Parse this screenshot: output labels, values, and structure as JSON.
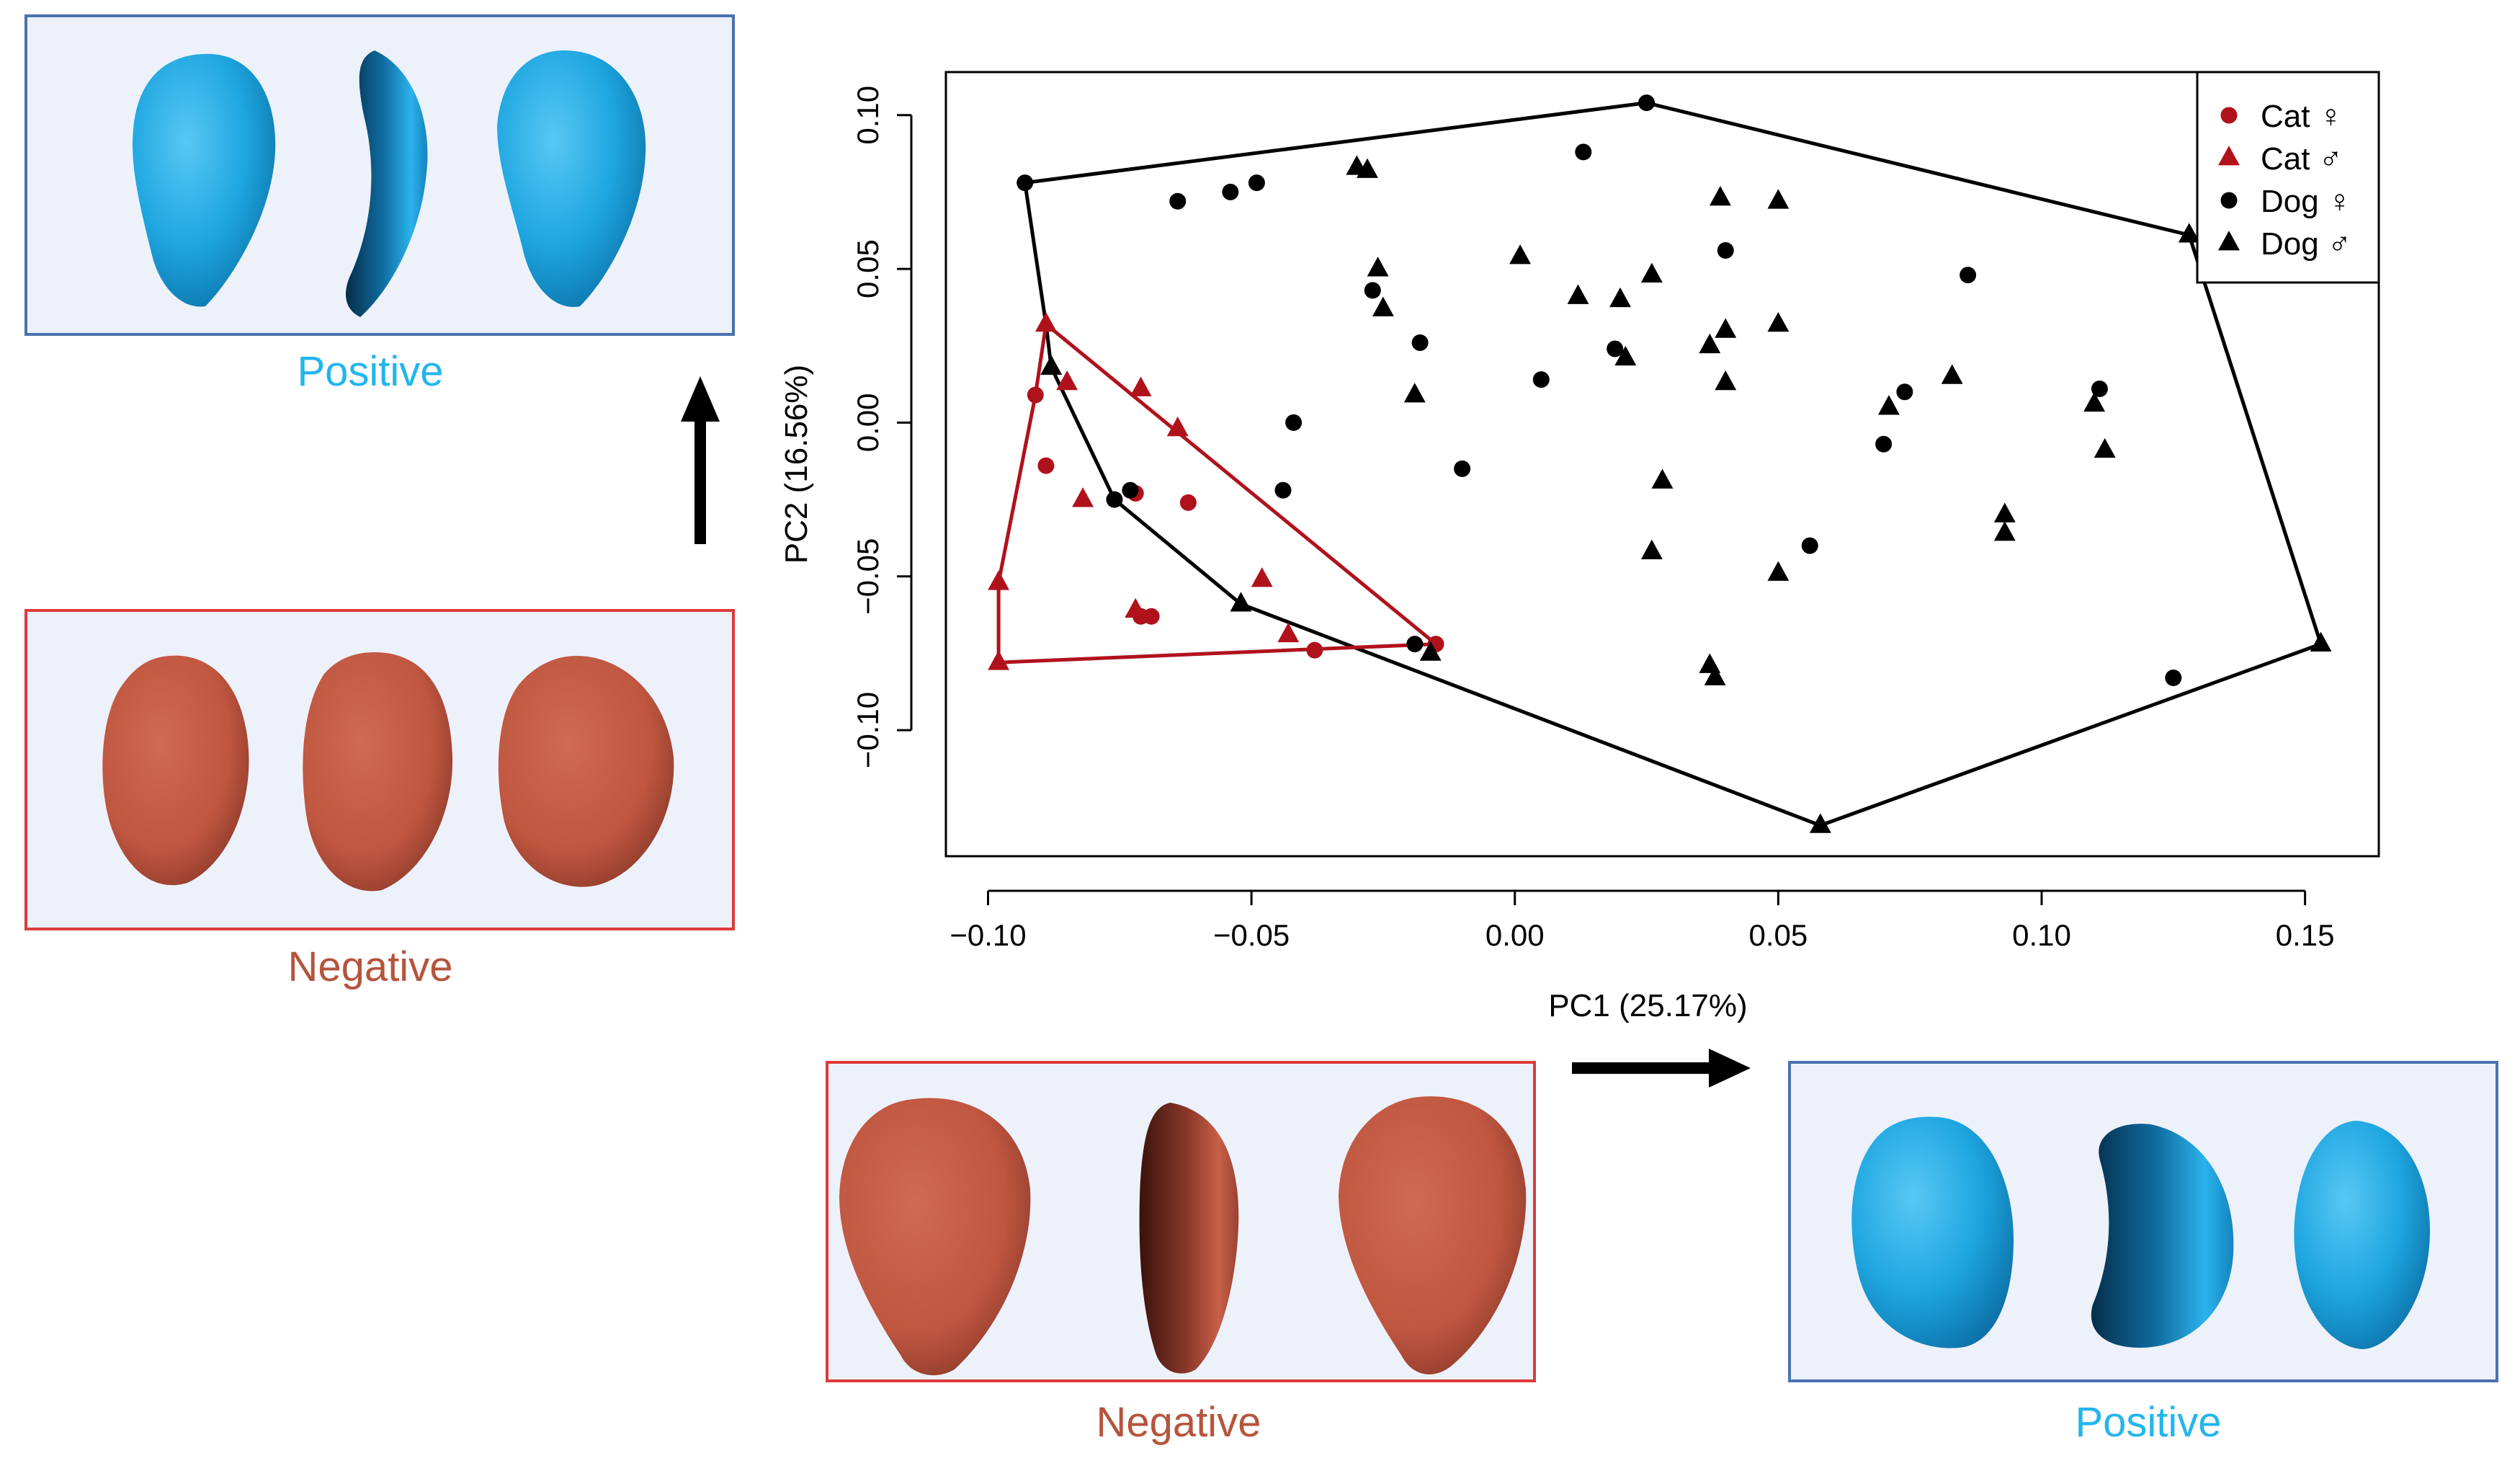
{
  "captions": {
    "top_left": "Positive",
    "mid_left": "Negative",
    "bottom_mid": "Negative",
    "bottom_right": "Positive"
  },
  "colors": {
    "cat": "#b0121c",
    "dog": "#000000",
    "positive_text": "#22b5ee",
    "negative_text": "#b6543c",
    "blue_shape": "#1ca3dc",
    "red_shape": "#c05a45"
  },
  "icons": {
    "pc2_arrow": "arrow-up-icon",
    "pc1_arrow": "arrow-right-icon",
    "female": "female-symbol",
    "male": "male-symbol"
  },
  "chart_data": {
    "type": "scatter",
    "title": "",
    "xlabel": "PC1 (25.17%)",
    "ylabel": "PC2 (16.56%)",
    "xlim": [
      -0.108,
      0.164
    ],
    "ylim": [
      -0.141,
      0.114
    ],
    "xticks": [
      -0.1,
      -0.05,
      0.0,
      0.05,
      0.1,
      0.15
    ],
    "xtick_labels": [
      "−0.10",
      "−0.05",
      "0.00",
      "0.05",
      "0.10",
      "0.15"
    ],
    "yticks": [
      -0.1,
      -0.05,
      0.0,
      0.05,
      0.1
    ],
    "ytick_labels": [
      "−0.10",
      "−0.05",
      "0.00",
      "0.05",
      "0.10"
    ],
    "grid": false,
    "legend_position": "top-right",
    "legend": [
      {
        "label": "Cat ♀",
        "species": "Cat",
        "symbol": "♀",
        "marker": "circle",
        "color": "#b0121c"
      },
      {
        "label": "Cat ♂",
        "species": "Cat",
        "symbol": "♂",
        "marker": "triangle",
        "color": "#b0121c"
      },
      {
        "label": "Dog ♀",
        "species": "Dog",
        "symbol": "♀",
        "marker": "circle",
        "color": "#000000"
      },
      {
        "label": "Dog ♂",
        "species": "Dog",
        "symbol": "♂",
        "marker": "triangle",
        "color": "#000000"
      }
    ],
    "series": [
      {
        "name": "Cat female",
        "marker": "circle",
        "color": "#b0121c",
        "points": [
          [
            -0.091,
            0.009
          ],
          [
            -0.089,
            -0.014
          ],
          [
            -0.072,
            -0.023
          ],
          [
            -0.062,
            -0.026
          ],
          [
            -0.071,
            -0.063
          ],
          [
            -0.069,
            -0.063
          ],
          [
            -0.038,
            -0.074
          ],
          [
            -0.015,
            -0.072
          ]
        ]
      },
      {
        "name": "Cat male",
        "marker": "triangle",
        "color": "#b0121c",
        "points": [
          [
            -0.089,
            0.032
          ],
          [
            -0.085,
            0.013
          ],
          [
            -0.071,
            0.011
          ],
          [
            -0.064,
            -0.002
          ],
          [
            -0.082,
            -0.025
          ],
          [
            -0.098,
            -0.052
          ],
          [
            -0.072,
            -0.061
          ],
          [
            -0.048,
            -0.051
          ],
          [
            -0.043,
            -0.069
          ],
          [
            -0.098,
            -0.078
          ]
        ]
      },
      {
        "name": "Dog female",
        "marker": "circle",
        "color": "#000000",
        "points": [
          [
            -0.093,
            0.078
          ],
          [
            -0.064,
            0.072
          ],
          [
            -0.054,
            0.075
          ],
          [
            -0.049,
            0.078
          ],
          [
            0.013,
            0.088
          ],
          [
            0.025,
            0.104
          ],
          [
            0.04,
            0.056
          ],
          [
            -0.027,
            0.043
          ],
          [
            -0.018,
            0.026
          ],
          [
            0.005,
            0.014
          ],
          [
            0.019,
            0.024
          ],
          [
            -0.042,
            0.0
          ],
          [
            -0.01,
            -0.015
          ],
          [
            -0.044,
            -0.022
          ],
          [
            -0.076,
            -0.025
          ],
          [
            -0.073,
            -0.022
          ],
          [
            0.056,
            -0.04
          ],
          [
            0.07,
            -0.007
          ],
          [
            0.074,
            0.01
          ],
          [
            0.086,
            0.048
          ],
          [
            0.111,
            0.011
          ],
          [
            0.125,
            -0.083
          ],
          [
            -0.019,
            -0.072
          ]
        ]
      },
      {
        "name": "Dog male",
        "marker": "triangle",
        "color": "#000000",
        "points": [
          [
            -0.03,
            0.083
          ],
          [
            -0.028,
            0.082
          ],
          [
            -0.026,
            0.05
          ],
          [
            -0.025,
            0.037
          ],
          [
            -0.019,
            0.009
          ],
          [
            0.001,
            0.054
          ],
          [
            0.012,
            0.041
          ],
          [
            0.02,
            0.04
          ],
          [
            0.021,
            0.021
          ],
          [
            0.026,
            0.048
          ],
          [
            0.037,
            0.025
          ],
          [
            0.039,
            0.073
          ],
          [
            0.04,
            0.03
          ],
          [
            0.04,
            0.013
          ],
          [
            0.05,
            0.072
          ],
          [
            0.05,
            0.032
          ],
          [
            0.028,
            -0.019
          ],
          [
            0.026,
            -0.042
          ],
          [
            0.05,
            -0.049
          ],
          [
            0.037,
            -0.079
          ],
          [
            0.038,
            -0.083
          ],
          [
            0.071,
            0.005
          ],
          [
            0.083,
            0.015
          ],
          [
            0.093,
            -0.03
          ],
          [
            0.093,
            -0.036
          ],
          [
            0.11,
            0.006
          ],
          [
            0.112,
            -0.009
          ],
          [
            0.128,
            0.061
          ],
          [
            0.153,
            -0.072
          ],
          [
            0.058,
            -0.131
          ],
          [
            -0.016,
            -0.075
          ],
          [
            -0.088,
            0.018
          ],
          [
            -0.052,
            -0.059
          ]
        ]
      }
    ],
    "hulls": [
      {
        "name": "Dog convex hull",
        "color": "#000000",
        "points": [
          [
            -0.093,
            0.078
          ],
          [
            0.025,
            0.104
          ],
          [
            0.128,
            0.061
          ],
          [
            0.153,
            -0.072
          ],
          [
            0.058,
            -0.131
          ],
          [
            -0.052,
            -0.059
          ],
          [
            -0.076,
            -0.025
          ],
          [
            -0.088,
            0.018
          ],
          [
            -0.089,
            0.032
          ],
          [
            -0.093,
            0.078
          ]
        ]
      },
      {
        "name": "Cat convex hull",
        "color": "#b0121c",
        "points": [
          [
            -0.089,
            0.032
          ],
          [
            -0.015,
            -0.072
          ],
          [
            -0.098,
            -0.078
          ],
          [
            -0.098,
            -0.052
          ],
          [
            -0.091,
            0.009
          ],
          [
            -0.089,
            0.032
          ]
        ]
      }
    ]
  }
}
